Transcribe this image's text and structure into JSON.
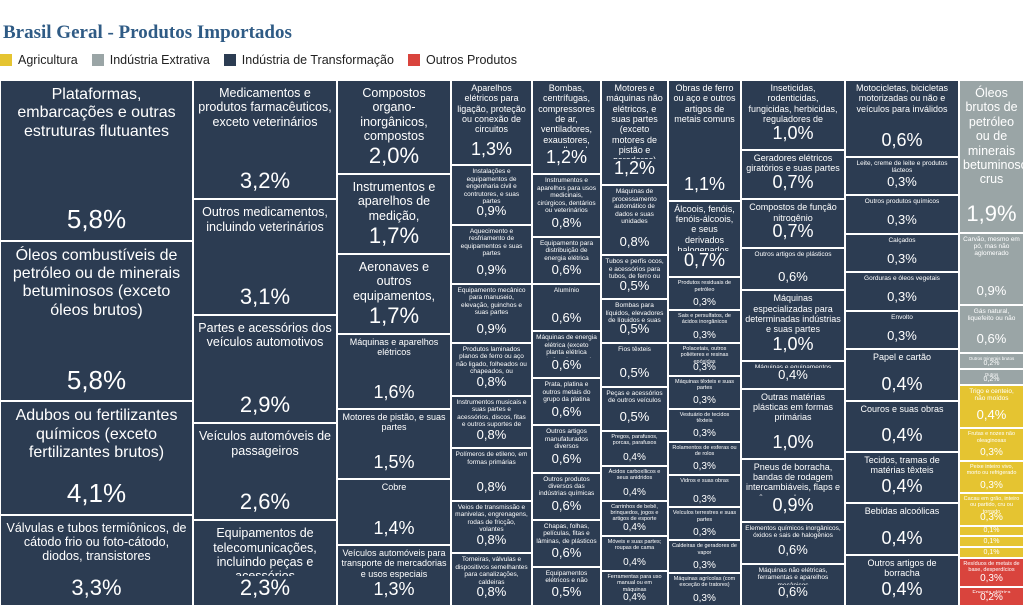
{
  "colors": {
    "Agricultura": "#e5c431",
    "Indústria Extrativa": "#9aa5a6",
    "Indústria de Transformação": "#2c3c52",
    "Outros Produtos": "#d9443d",
    "text_light": "#ffffff",
    "text_dark": "#ffffff"
  },
  "chart_data": {
    "type": "treemap",
    "title": "Brasil Geral - Produtos Importados",
    "legend": [
      "Agricultura",
      "Indústria Extrativa",
      "Indústria de Transformação",
      "Outros Produtos"
    ],
    "legend_position": "top-left",
    "unit": "%",
    "columns": [
      {
        "group": "Indústria de Transformação",
        "items": [
          {
            "label": "Plataformas, embarcações e outras estruturas flutuantes",
            "value": 5.8
          },
          {
            "label": "Óleos combustíveis de petróleo ou de minerais betuminosos (exceto óleos brutos)",
            "value": 5.8
          },
          {
            "label": "Adubos ou fertilizantes químicos (exceto fertilizantes brutos)",
            "value": 4.1
          },
          {
            "label": "Válvulas e tubos termiônicos, de cátodo frio ou foto-cátodo, diodos, transistores",
            "value": 3.3
          }
        ]
      },
      {
        "group": "Indústria de Transformação",
        "items": [
          {
            "label": "Medicamentos e produtos farmacêuticos, exceto veterinários",
            "value": 3.2
          },
          {
            "label": "Outros medicamentos, incluindo veterinários",
            "value": 3.1
          },
          {
            "label": "Partes e acessórios dos veículos automotivos",
            "value": 2.9
          },
          {
            "label": "Veículos automóveis de passageiros",
            "value": 2.6
          },
          {
            "label": "Equipamentos de telecomunicações, incluindo peças e acessórios",
            "value": 2.3
          }
        ]
      },
      {
        "group": "Indústria de Transformação",
        "items": [
          {
            "label": "Compostos organo-inorgânicos, compostos heterocíclicos, ácidos nucléicos e seus sais, e sulfonamidas",
            "value": 2.0
          },
          {
            "label": "Instrumentos e aparelhos de medição, verificação, análise e controle",
            "value": 1.7
          },
          {
            "label": "Aeronaves e outros equipamentos, incluindo suas partes",
            "value": 1.7
          },
          {
            "label": "Máquinas e aparelhos elétricos",
            "value": 1.6
          },
          {
            "label": "Motores de pistão, e suas partes",
            "value": 1.5
          },
          {
            "label": "Cobre",
            "value": 1.4
          },
          {
            "label": "Veículos automóveis para transporte de mercadorias e usos especiais",
            "value": 1.3
          }
        ]
      },
      {
        "group": "Indústria de Transformação",
        "items": [
          {
            "label": "Aparelhos elétricos para ligação, proteção ou conexão de circuitos",
            "value": 1.3
          },
          {
            "label": "Instalações e equipamentos de engenharia civil e contrutores, e suas partes",
            "value": 0.9
          },
          {
            "label": "Aquecimento e resfriamento de equipamentos e suas partes",
            "value": 0.9
          },
          {
            "label": "Equipamento mecânico para manuseio, elevação, guinchos e suas partes",
            "value": 0.9
          },
          {
            "label": "Produtos laminados planos de ferro ou aço não ligado, folheados ou chapeados, ou revestidos",
            "value": 0.8
          },
          {
            "label": "Instrumentos musicais e suas partes e acessórios, discos, fitas e outros suportes de som",
            "value": 0.8
          },
          {
            "label": "Polímeros de etileno, em formas primárias",
            "value": 0.8
          },
          {
            "label": "Veios de transmissão e manivelas, engrenagens, rodas de fricção, volantes",
            "value": 0.8
          },
          {
            "label": "Torneiras, válvulas e dispositivos semelhantes para canalizações, caldeiras",
            "value": 0.8
          }
        ]
      },
      {
        "group": "Indústria de Transformação",
        "items": [
          {
            "label": "Bombas, centrífugas, compressores de ar, ventiladores, exaustores, aparelhos de filtrar ou depurar e suas partes",
            "value": 1.2
          },
          {
            "label": "Instrumentos e aparelhos para usos medicinais, cirúrgicos, dentários ou veterinários",
            "value": 0.8
          },
          {
            "label": "Equipamento para distribuição de energia elétrica",
            "value": 0.6
          },
          {
            "label": "Alumínio",
            "value": 0.6
          },
          {
            "label": "Máquinas de energia elétrica (exceto planta elétrica rotativa do grupo)",
            "value": 0.6
          },
          {
            "label": "Prata, platina e outros metais do grupo da platina",
            "value": 0.6
          },
          {
            "label": "Outros artigos manufaturados diversos",
            "value": 0.6
          },
          {
            "label": "Outros produtos diversos das indústrias químicas",
            "value": 0.6
          },
          {
            "label": "Chapas, folhas, películas, fitas e lâminas, de plásticos",
            "value": 0.6
          },
          {
            "label": "Equipamentos elétricos e não elétricos de uso doméstico",
            "value": 0.5
          }
        ]
      },
      {
        "group": "Indústria de Transformação",
        "items": [
          {
            "label": "Motores e máquinas não elétricos, e suas partes (exceto motores de pistão e geradores)",
            "value": 1.2
          },
          {
            "label": "Máquinas de processamento automático de dados e suas unidades",
            "value": 0.8
          },
          {
            "label": "Tubos e perfis ocos, e acessórios para tubos, de ferro ou aço",
            "value": 0.5
          },
          {
            "label": "Bombas para líquidos, elevadores de líquidos e suas partes",
            "value": 0.5
          },
          {
            "label": "Fios têxteis",
            "value": 0.5
          },
          {
            "label": "Peças e acessórios de outros veículos",
            "value": 0.5
          },
          {
            "label": "Pregos, parafusos, porcas, parafusos",
            "value": 0.4
          },
          {
            "label": "Ácidos carboxílicos e seus anidridos",
            "value": 0.4
          },
          {
            "label": "Carrinhos de bebê, brinquedos, jogos e artigos de esporte",
            "value": 0.4
          },
          {
            "label": "Móveis e suas partes; roupas de cama",
            "value": 0.4
          },
          {
            "label": "Ferramentas para uso manual ou em máquinas",
            "value": 0.4
          }
        ]
      },
      {
        "group": "Indústria de Transformação",
        "items": [
          {
            "label": "Obras de ferro ou aço e outros artigos de metais comuns",
            "value": 1.1
          },
          {
            "label": "Álcoois, fenóis, fenóis-álcoois, e seus derivados halogenados, sulfonados",
            "value": 0.7
          },
          {
            "label": "Produtos residuais de petróleo",
            "value": 0.3
          },
          {
            "label": "Sais e persulfatos, de ácidos inorgânicos",
            "value": 0.3
          },
          {
            "label": "Polacetais, outros poliéteres e resinas epóxidas",
            "value": 0.3
          },
          {
            "label": "Máquinas têxteis e suas partes",
            "value": 0.3
          },
          {
            "label": "Vestuário de tecidos têxteis",
            "value": 0.3
          },
          {
            "label": "Rolamentos de esferas ou de rolos",
            "value": 0.3
          },
          {
            "label": "Vidros e suas obras",
            "value": 0.3
          },
          {
            "label": "Veículos terrestres e suas partes",
            "value": 0.3
          },
          {
            "label": "Caldeiras de geradores de vapor",
            "value": 0.3
          },
          {
            "label": "Máquinas agrícolas (com exceção de tratores)",
            "value": 0.3
          }
        ]
      },
      {
        "group": "Indústria de Transformação",
        "items": [
          {
            "label": "Inseticidas, rodenticidas, fungicidas, herbicidas, reguladores de crescimento para plantas, desinfetantes",
            "value": 1.0
          },
          {
            "label": "Geradores elétricos giratórios e suas partes",
            "value": 0.7
          },
          {
            "label": "Compostos de função nitrogênio",
            "value": 0.7
          },
          {
            "label": "Outros artigos de plásticos",
            "value": 0.6
          },
          {
            "label": "Máquinas especializadas para determinadas indústrias e suas partes",
            "value": 1.0
          },
          {
            "label": "Máquinas e equipamentos especializados",
            "value": 0.4
          },
          {
            "label": "Outras matérias plásticas em formas primárias",
            "value": 1.0
          },
          {
            "label": "Pneus de borracha, bandas de rodagem intercambiáveis, flaps e câmaras de ar para rodas",
            "value": 0.9
          },
          {
            "label": "Elementos químicos inorgânicos, óxidos e sais de halogênios",
            "value": 0.6
          },
          {
            "label": "Máquinas não elétricas, ferramentas e aparelhos mecânicos",
            "value": 0.6
          }
        ]
      },
      {
        "group": "Indústria de Transformação",
        "items": [
          {
            "label": "Motocicletas, bicicletas motorizadas ou não e veículos para inválidos",
            "value": 0.6
          },
          {
            "label": "Leite, creme de leite e produtos lácteos",
            "value": 0.3
          },
          {
            "label": "Outros produtos químicos",
            "value": 0.3
          },
          {
            "label": "Calçados",
            "value": 0.3
          },
          {
            "label": "Gorduras e óleos vegetais",
            "value": 0.3
          },
          {
            "label": "Envolto",
            "value": 0.3
          },
          {
            "label": "Papel e cartão",
            "value": 0.4
          },
          {
            "label": "Couros e suas obras",
            "value": 0.4
          },
          {
            "label": "Tecidos, tramas de matérias têxteis",
            "value": 0.4
          },
          {
            "label": "Bebidas alcoólicas",
            "value": 0.4
          },
          {
            "label": "Outros artigos de borracha",
            "value": 0.4
          }
        ]
      },
      {
        "group": "Indústria Extrativa",
        "items": [
          {
            "label": "Óleos brutos de petróleo ou de minerais betuminosos, crus",
            "value": 1.9
          },
          {
            "label": "Carvão, mesmo em pó, mas não aglomerado",
            "value": 0.9
          },
          {
            "label": "Gás natural, liquefeito ou não",
            "value": 0.6
          },
          {
            "label": "Outros minerais brutos",
            "value": 0.2
          },
          {
            "label": "Outros",
            "value": 0.2
          }
        ]
      },
      {
        "group": "Agricultura",
        "items": [
          {
            "label": "Trigo e centeio, não moídos",
            "value": 0.4
          },
          {
            "label": "Frutas e nozes não oleaginosas",
            "value": 0.3
          },
          {
            "label": "Peixe inteiro vivo, morto ou refrigerado",
            "value": 0.3
          },
          {
            "label": "Cacau em grão, inteiro ou partido, cru ou torrado",
            "value": 0.3
          },
          {
            "label": "Produtos hortícolas",
            "value": 0.1
          },
          {
            "label": "Borracha natural",
            "value": 0.1
          },
          {
            "label": "Cevada",
            "value": 0.1
          }
        ]
      },
      {
        "group": "Outros Produtos",
        "items": [
          {
            "label": "Resíduos de metais de base, desperdícios",
            "value": 0.3
          },
          {
            "label": "Energia elétrica",
            "value": 0.2
          }
        ]
      }
    ]
  }
}
